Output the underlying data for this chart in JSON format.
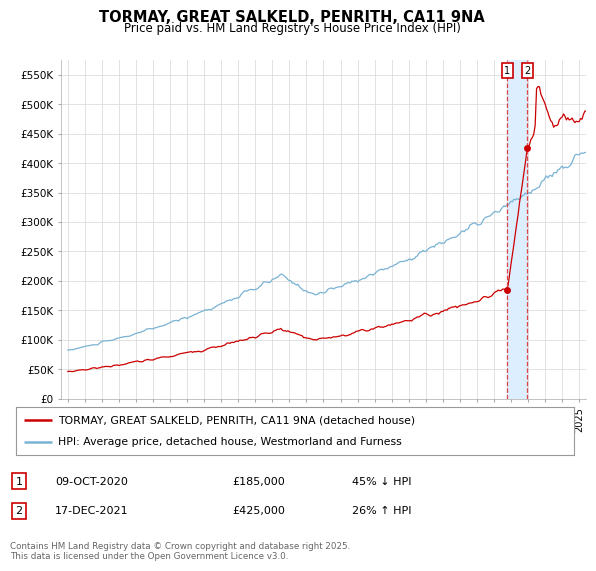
{
  "title": "TORMAY, GREAT SALKELD, PENRITH, CA11 9NA",
  "subtitle": "Price paid vs. HM Land Registry's House Price Index (HPI)",
  "ylim": [
    0,
    575000
  ],
  "yticks": [
    0,
    50000,
    100000,
    150000,
    200000,
    250000,
    300000,
    350000,
    400000,
    450000,
    500000,
    550000
  ],
  "ytick_labels": [
    "£0",
    "£50K",
    "£100K",
    "£150K",
    "£200K",
    "£250K",
    "£300K",
    "£350K",
    "£400K",
    "£450K",
    "£500K",
    "£550K"
  ],
  "hpi_color": "#7ab3d4",
  "price_color": "#cc0000",
  "vline_color": "#dd4444",
  "shade_color": "#ddeeff",
  "transaction1_date": 2020.79,
  "transaction1_price": 185000,
  "transaction2_date": 2021.96,
  "transaction2_price": 425000,
  "legend_label1": "TORMAY, GREAT SALKELD, PENRITH, CA11 9NA (detached house)",
  "legend_label2": "HPI: Average price, detached house, Westmorland and Furness",
  "table_row1": [
    "1",
    "09-OCT-2020",
    "£185,000",
    "45% ↓ HPI"
  ],
  "table_row2": [
    "2",
    "17-DEC-2021",
    "£425,000",
    "26% ↑ HPI"
  ],
  "footer": "Contains HM Land Registry data © Crown copyright and database right 2025.\nThis data is licensed under the Open Government Licence v3.0.",
  "background_color": "#ffffff",
  "grid_color": "#dddddd",
  "label_box_color": "#cc0000"
}
